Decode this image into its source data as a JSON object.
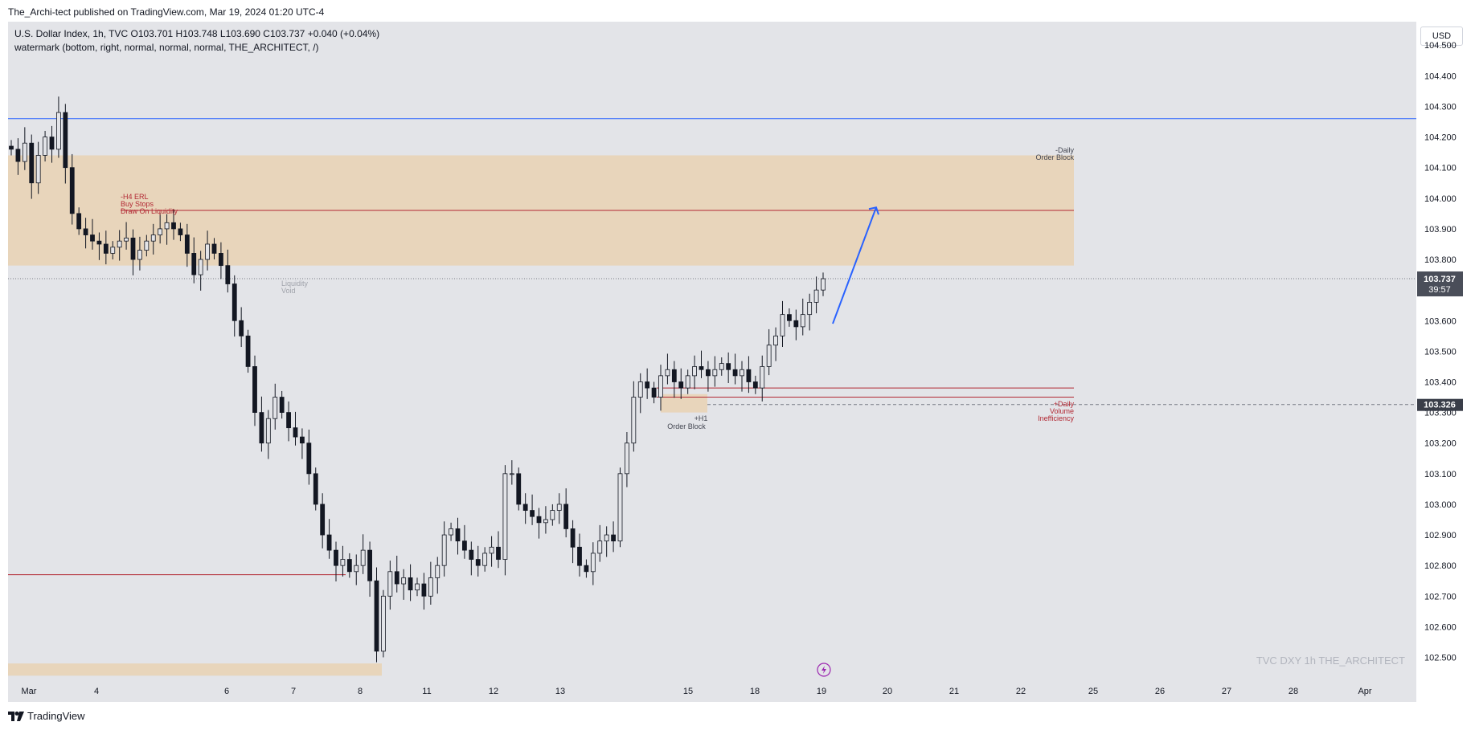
{
  "header": {
    "publisher_line": "The_Archi-tect published on TradingView.com, Mar 19, 2024 01:20 UTC-4"
  },
  "legend": {
    "symbol_line": "U.S. Dollar Index, 1h, TVC  O103.701  H103.748  L103.690  C103.737  +0.040 (+0.04%)",
    "indicator_line": "watermark (bottom, right, normal, normal, normal, THE_ARCHITECT, /)"
  },
  "currency_button": "USD",
  "watermark": "TVC   DXY 1h   THE_ARCHITECT",
  "footer": {
    "brand": "TradingView",
    "logo_icon": "tradingview-logo-icon"
  },
  "colors": {
    "accent_blue": "#2962ff",
    "level_red": "#b22833",
    "zone_orange": "#e8d4b8",
    "candle_dark": "#131722",
    "background": "#e3e4e8"
  },
  "chart_data": {
    "type": "candlestick",
    "symbol": "DXY",
    "interval": "1h",
    "y_axis": {
      "min": 102.42,
      "max": 104.54,
      "ticks": [
        "104.500",
        "104.400",
        "104.300",
        "104.200",
        "104.100",
        "104.000",
        "103.900",
        "103.800",
        "103.600",
        "103.500",
        "103.400",
        "103.300",
        "103.200",
        "103.100",
        "103.000",
        "102.900",
        "102.800",
        "102.700",
        "102.600",
        "102.500"
      ]
    },
    "x_axis": {
      "ticks": [
        "Mar",
        "4",
        "6",
        "7",
        "8",
        "11",
        "12",
        "13",
        "15",
        "18",
        "19",
        "20",
        "21",
        "22",
        "25",
        "26",
        "27",
        "28",
        "Apr"
      ]
    },
    "last_price": {
      "value": "103.737",
      "countdown": "39:57"
    },
    "marked_price": {
      "value": "103.326"
    },
    "closes": [
      104.16,
      104.12,
      104.18,
      104.05,
      104.14,
      104.2,
      104.16,
      104.28,
      104.1,
      103.95,
      103.9,
      103.88,
      103.86,
      103.85,
      103.82,
      103.84,
      103.86,
      103.87,
      103.8,
      103.83,
      103.86,
      103.88,
      103.9,
      103.92,
      103.9,
      103.88,
      103.82,
      103.75,
      103.8,
      103.85,
      103.82,
      103.78,
      103.72,
      103.6,
      103.55,
      103.45,
      103.3,
      103.2,
      103.28,
      103.35,
      103.3,
      103.25,
      103.22,
      103.2,
      103.1,
      103.0,
      102.9,
      102.85,
      102.8,
      102.82,
      102.78,
      102.8,
      102.85,
      102.75,
      102.52,
      102.7,
      102.78,
      102.74,
      102.76,
      102.72,
      102.74,
      102.7,
      102.76,
      102.8,
      102.9,
      102.92,
      102.88,
      102.85,
      102.82,
      102.8,
      102.84,
      102.86,
      102.82,
      103.1,
      103.1,
      103.0,
      102.98,
      102.96,
      102.94,
      102.95,
      102.98,
      103.0,
      102.92,
      102.86,
      102.8,
      102.78,
      102.84,
      102.88,
      102.9,
      102.88,
      103.1,
      103.2,
      103.35,
      103.4,
      103.38,
      103.35,
      103.42,
      103.44,
      103.4,
      103.38,
      103.42,
      103.45,
      103.44,
      103.42,
      103.44,
      103.46,
      103.44,
      103.42,
      103.44,
      103.4,
      103.38,
      103.45,
      103.52,
      103.55,
      103.62,
      103.6,
      103.58,
      103.62,
      103.66,
      103.7,
      103.737
    ],
    "zones": [
      {
        "label": "-Daily\nOrder Block",
        "y_top": 104.14,
        "y_bottom": 103.78,
        "color": "#e8d4b8"
      },
      {
        "label": "+H1\nOrder Block",
        "y_top": 103.36,
        "y_bottom": 103.3,
        "color": "#e8d4b8"
      },
      {
        "label": "",
        "y_top": 102.48,
        "y_bottom": 102.44,
        "color": "#e8d4b8"
      }
    ],
    "levels": [
      {
        "value": 104.26,
        "color": "#2962ff",
        "label": ""
      },
      {
        "value": 103.96,
        "color": "#b22833",
        "label": "-H4 ERL\nBuy Stops\nDraw On Liquidity"
      },
      {
        "value": 103.38,
        "color": "#b22833",
        "label": "+Daily\nVolume\nInefficiency"
      },
      {
        "value": 103.35,
        "color": "#b22833",
        "label": ""
      },
      {
        "value": 102.77,
        "color": "#b22833",
        "label": ""
      }
    ],
    "annotations": [
      "-H4 ERL",
      "Buy Stops",
      "Draw On Liquidity",
      "Liquidity",
      "Void",
      "-Daily",
      "Order Block",
      "+H1",
      "Order Block",
      "+Daily",
      "Volume",
      "Inefficiency"
    ],
    "projection_arrow": {
      "from_price": 103.59,
      "to_price": 103.97,
      "color": "#2962ff"
    }
  }
}
